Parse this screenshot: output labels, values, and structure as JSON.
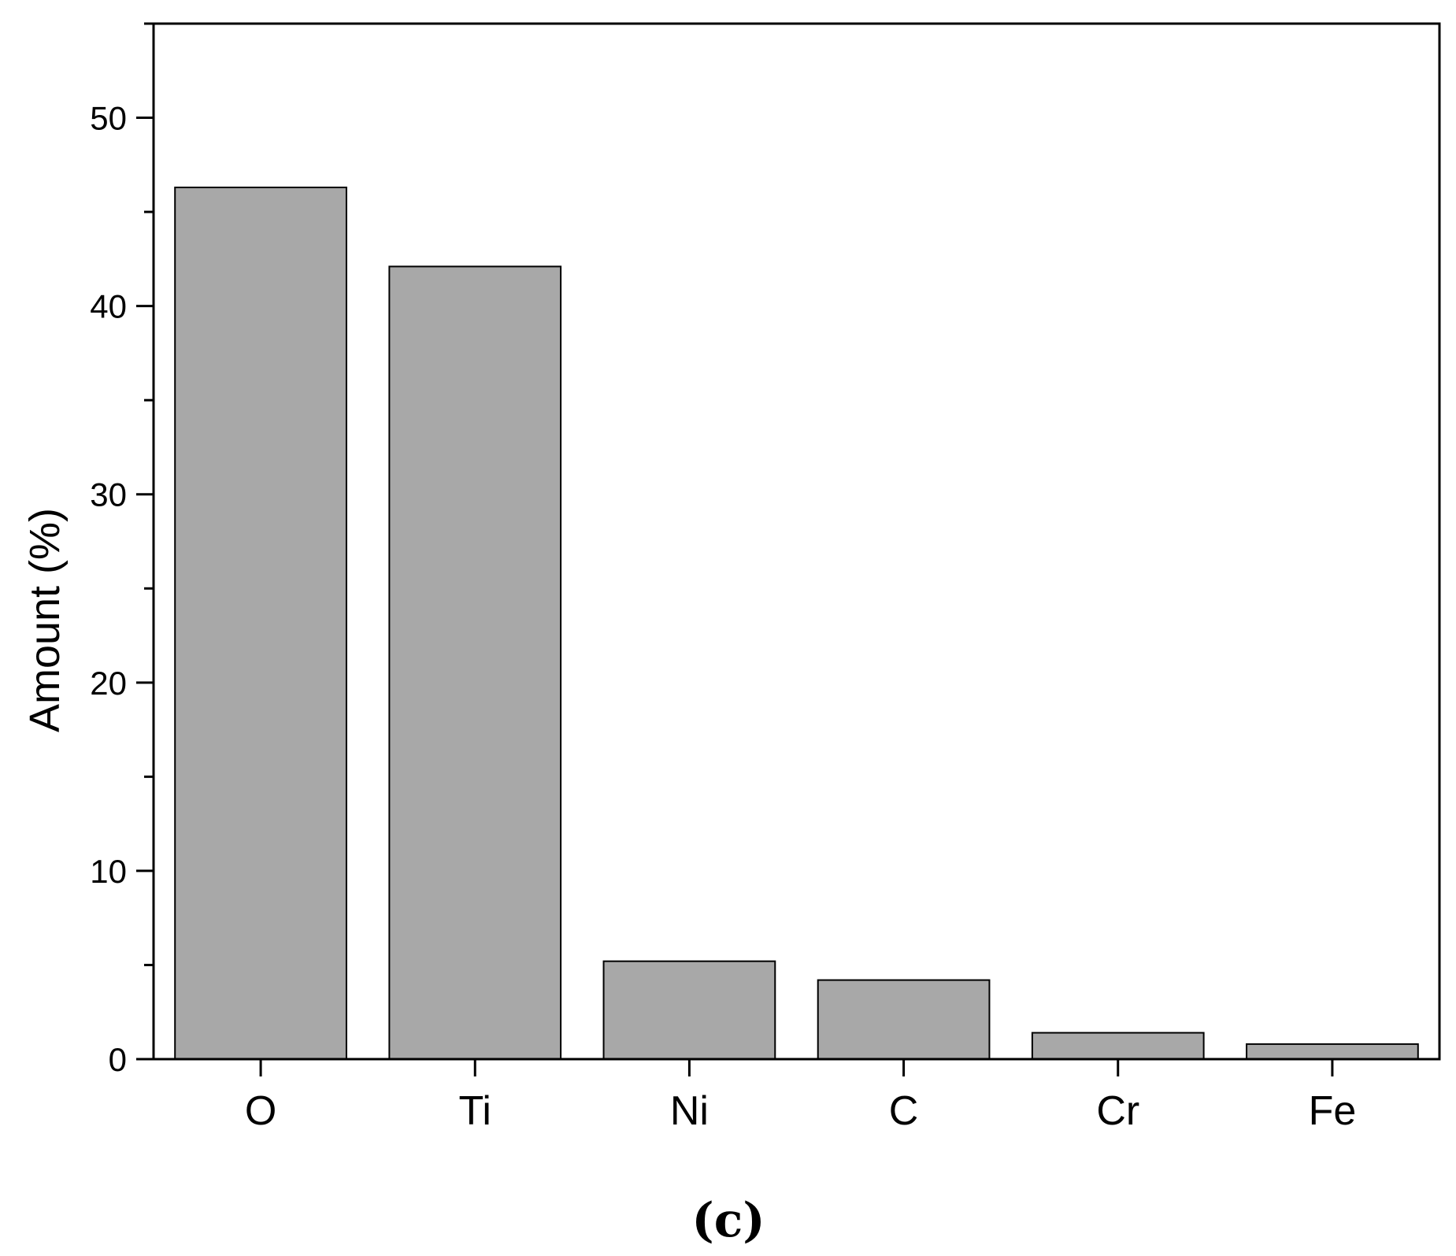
{
  "chart_data": {
    "type": "bar",
    "categories": [
      "O",
      "Ti",
      "Ni",
      "C",
      "Cr",
      "Fe"
    ],
    "values": [
      46.3,
      42.1,
      5.2,
      4.2,
      1.4,
      0.8
    ],
    "ylabel": "Amount (%)",
    "xlabel": "",
    "ylim": [
      0,
      55
    ],
    "yticks": [
      0,
      10,
      20,
      30,
      40,
      50
    ],
    "grid": false,
    "bar_color": "#a8a8a8",
    "bar_edge_color": "#000000"
  },
  "caption": "(c)"
}
